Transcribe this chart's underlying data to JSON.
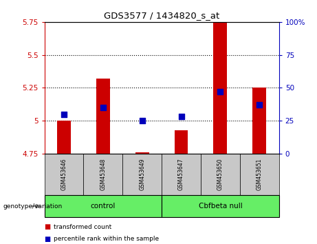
{
  "title": "GDS3577 / 1434820_s_at",
  "samples": [
    "GSM453646",
    "GSM453648",
    "GSM453649",
    "GSM453647",
    "GSM453650",
    "GSM453651"
  ],
  "bar_base": 4.75,
  "transformed_counts": [
    5.0,
    5.32,
    4.76,
    4.93,
    5.75,
    5.25
  ],
  "percentile_ranks": [
    30,
    35,
    25,
    28,
    47,
    37
  ],
  "ylim_left": [
    4.75,
    5.75
  ],
  "ylim_right": [
    0,
    100
  ],
  "yticks_left": [
    4.75,
    5.0,
    5.25,
    5.5,
    5.75
  ],
  "yticks_right": [
    0,
    25,
    50,
    75,
    100
  ],
  "ytick_labels_left": [
    "4.75",
    "5",
    "5.25",
    "5.5",
    "5.75"
  ],
  "ytick_labels_right": [
    "0",
    "25",
    "50",
    "75",
    "100%"
  ],
  "grid_values": [
    5.0,
    5.25,
    5.5
  ],
  "bar_color": "#CC0000",
  "dot_color": "#0000BB",
  "bar_width": 0.35,
  "dot_size": 30,
  "left_tick_color": "#CC0000",
  "right_tick_color": "#0000BB",
  "legend_labels": [
    "transformed count",
    "percentile rank within the sample"
  ],
  "genotype_label": "genotype/variation",
  "sample_bg": "#C8C8C8",
  "group_color": "#66EE66",
  "group_spans": [
    [
      0,
      2,
      "control"
    ],
    [
      3,
      5,
      "Cbfbeta null"
    ]
  ]
}
